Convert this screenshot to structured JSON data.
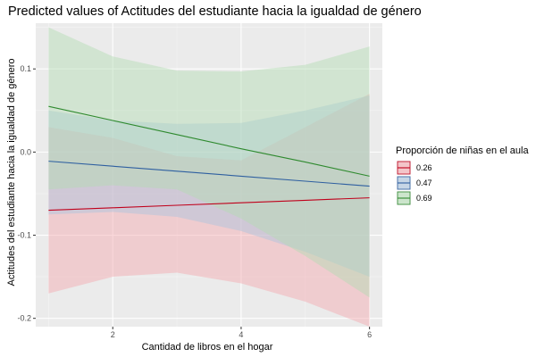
{
  "chart_data": {
    "type": "line",
    "title": "Predicted values of Actitudes del estudiante hacia la igualdad de género",
    "xlabel": "Cantidad de libros en el hogar",
    "ylabel": "Actitudes del estudiante hacia la igualdad de género",
    "xlim": [
      0.8,
      6.2
    ],
    "ylim": [
      -0.21,
      0.155
    ],
    "x_ticks": [
      2,
      4,
      6
    ],
    "x_tick_labels": [
      "2",
      "4",
      "6"
    ],
    "y_ticks": [
      -0.2,
      -0.1,
      0.0,
      0.1
    ],
    "y_tick_labels": [
      "-0.2",
      "-0.1",
      "0.0",
      "0.1"
    ],
    "grid": true,
    "legend": {
      "title": "Proporción de niñas en el aula",
      "placement": "right"
    },
    "x": [
      1,
      2,
      3,
      4,
      5,
      6
    ],
    "series": [
      {
        "name": "0.26",
        "color": "#c0001b",
        "fill": "#f3a7ae",
        "values": [
          -0.07,
          -0.067,
          -0.064,
          -0.061,
          -0.058,
          -0.055
        ],
        "lower": [
          -0.17,
          -0.15,
          -0.145,
          -0.158,
          -0.18,
          -0.21
        ],
        "upper": [
          0.03,
          0.017,
          -0.005,
          -0.01,
          0.03,
          0.07
        ]
      },
      {
        "name": "0.47",
        "color": "#2e5fa0",
        "fill": "#a9c3de",
        "values": [
          -0.011,
          -0.017,
          -0.023,
          -0.029,
          -0.035,
          -0.041
        ],
        "lower": [
          -0.075,
          -0.072,
          -0.078,
          -0.095,
          -0.12,
          -0.15
        ],
        "upper": [
          0.05,
          0.038,
          0.034,
          0.035,
          0.05,
          0.068
        ]
      },
      {
        "name": "0.69",
        "color": "#2f8a2f",
        "fill": "#b2dcb2",
        "values": [
          0.055,
          0.038,
          0.021,
          0.004,
          -0.012,
          -0.029
        ],
        "lower": [
          -0.045,
          -0.04,
          -0.045,
          -0.08,
          -0.125,
          -0.175
        ],
        "upper": [
          0.15,
          0.115,
          0.098,
          0.097,
          0.105,
          0.127
        ]
      }
    ]
  }
}
